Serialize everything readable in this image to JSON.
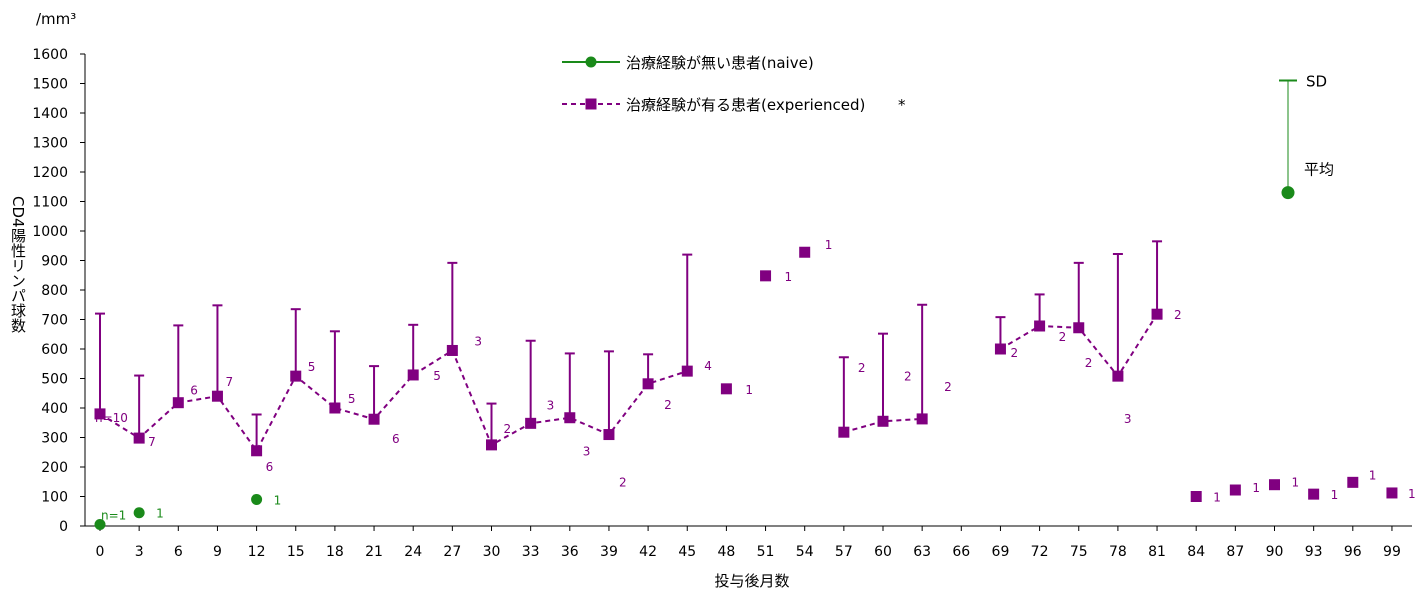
{
  "chart_data": {
    "type": "line",
    "unit_label": "/mm³",
    "ylabel": "CD4陽性リンパ球数",
    "xlabel": "投与後月数",
    "ylim": [
      0,
      1600
    ],
    "yticks": [
      0,
      100,
      200,
      300,
      400,
      500,
      600,
      700,
      800,
      900,
      1000,
      1100,
      1200,
      1300,
      1400,
      1500,
      1600
    ],
    "categories": [
      "0",
      "3",
      "6",
      "9",
      "12",
      "15",
      "18",
      "21",
      "24",
      "27",
      "30",
      "33",
      "36",
      "39",
      "42",
      "45",
      "48",
      "51",
      "54",
      "57",
      "60",
      "63",
      "66",
      "69",
      "72",
      "75",
      "78",
      "81",
      "84",
      "87",
      "90",
      "93",
      "96",
      "99"
    ],
    "grid": false,
    "colors": {
      "naive": "#1a8a1a",
      "experienced": "#800080"
    },
    "series": [
      {
        "name": "治療経験が無い患者(naive)",
        "marker": "circle",
        "line": "solid",
        "points": [
          {
            "cat": "0",
            "mean": 5,
            "n": "n=1"
          },
          {
            "cat": "3",
            "mean": 45,
            "n": "1"
          },
          {
            "cat": "12",
            "mean": 90,
            "n": "1"
          }
        ]
      },
      {
        "name": "治療経験が有る患者(experienced)",
        "legend_suffix": "*",
        "marker": "square",
        "line": "dashed",
        "segments": [
          [
            "0",
            "3",
            "6",
            "9",
            "12",
            "15",
            "18",
            "21",
            "24",
            "27",
            "30",
            "33",
            "36",
            "39",
            "42",
            "45"
          ],
          [
            "57",
            "60",
            "63"
          ],
          [
            "69",
            "72",
            "75",
            "78",
            "81"
          ]
        ],
        "points": [
          {
            "cat": "0",
            "mean": 380,
            "sd_top": 720,
            "n": "n=10"
          },
          {
            "cat": "3",
            "mean": 298,
            "sd_top": 510,
            "n": "7"
          },
          {
            "cat": "6",
            "mean": 418,
            "sd_top": 680,
            "n": "6"
          },
          {
            "cat": "9",
            "mean": 440,
            "sd_top": 748,
            "n": "7"
          },
          {
            "cat": "12",
            "mean": 255,
            "sd_top": 378,
            "n": "6"
          },
          {
            "cat": "15",
            "mean": 508,
            "sd_top": 735,
            "n": "5"
          },
          {
            "cat": "18",
            "mean": 400,
            "sd_top": 660,
            "n": "5"
          },
          {
            "cat": "21",
            "mean": 362,
            "sd_top": 542,
            "n": "6"
          },
          {
            "cat": "24",
            "mean": 512,
            "sd_top": 682,
            "n": "5"
          },
          {
            "cat": "27",
            "mean": 595,
            "sd_top": 892,
            "n": "3"
          },
          {
            "cat": "30",
            "mean": 275,
            "sd_top": 415,
            "n": "2"
          },
          {
            "cat": "33",
            "mean": 348,
            "sd_top": 628,
            "n": "3"
          },
          {
            "cat": "36",
            "mean": 367,
            "sd_top": 585,
            "n": "3"
          },
          {
            "cat": "39",
            "mean": 310,
            "sd_top": 592,
            "n": "2"
          },
          {
            "cat": "42",
            "mean": 482,
            "sd_top": 582,
            "n": "2"
          },
          {
            "cat": "45",
            "mean": 525,
            "sd_top": 920,
            "n": "4"
          },
          {
            "cat": "48",
            "mean": 465,
            "n": "1"
          },
          {
            "cat": "51",
            "mean": 848,
            "n": "1"
          },
          {
            "cat": "54",
            "mean": 928,
            "n": "1"
          },
          {
            "cat": "57",
            "mean": 318,
            "sd_top": 572,
            "n": "2"
          },
          {
            "cat": "60",
            "mean": 355,
            "sd_top": 652,
            "n": "2"
          },
          {
            "cat": "63",
            "mean": 363,
            "sd_top": 750,
            "n": "2"
          },
          {
            "cat": "69",
            "mean": 600,
            "sd_top": 708,
            "n": "2"
          },
          {
            "cat": "72",
            "mean": 678,
            "sd_top": 785,
            "n": "2"
          },
          {
            "cat": "75",
            "mean": 672,
            "sd_top": 892,
            "n": "2"
          },
          {
            "cat": "78",
            "mean": 508,
            "sd_top": 922,
            "n": "3"
          },
          {
            "cat": "81",
            "mean": 718,
            "sd_top": 965,
            "n": "2"
          },
          {
            "cat": "84",
            "mean": 100,
            "n": "1"
          },
          {
            "cat": "87",
            "mean": 122,
            "n": "1"
          },
          {
            "cat": "90",
            "mean": 140,
            "n": "1"
          },
          {
            "cat": "93",
            "mean": 108,
            "n": "1"
          },
          {
            "cat": "96",
            "mean": 148,
            "n": "1"
          },
          {
            "cat": "99",
            "mean": 112,
            "n": "1"
          }
        ]
      }
    ],
    "key": {
      "sd_label": "SD",
      "mean_label": "平均",
      "sd_value": 1510,
      "mean_value": 1130
    }
  }
}
